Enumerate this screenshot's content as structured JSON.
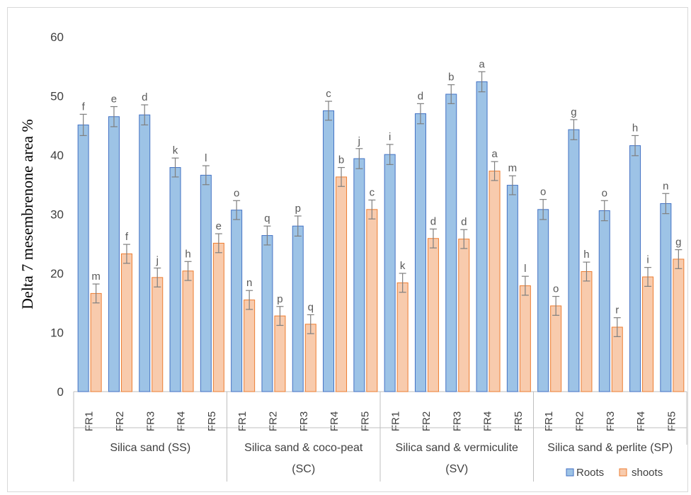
{
  "chart_data": {
    "type": "bar",
    "ylabel": "Delta 7 mesembrenone area %",
    "ylim": [
      0,
      60
    ],
    "yticks": [
      0,
      10,
      20,
      30,
      40,
      50,
      60
    ],
    "groups": [
      {
        "label": "Silica sand (SS)",
        "label2": "",
        "categories": [
          "FR1",
          "FR2",
          "FR3",
          "FR4",
          "FR5"
        ]
      },
      {
        "label": "Silica sand & coco-peat",
        "label2": "(SC)",
        "categories": [
          "FR1",
          "FR2",
          "FR3",
          "FR4",
          "FR5"
        ]
      },
      {
        "label": "Silica sand & vermiculite",
        "label2": "(SV)",
        "categories": [
          "FR1",
          "FR2",
          "FR3",
          "FR4",
          "FR5"
        ]
      },
      {
        "label": "Silica sand & perlite (SP)",
        "label2": "",
        "categories": [
          "FR1",
          "FR2",
          "FR3",
          "FR4",
          "FR5"
        ]
      }
    ],
    "series": [
      {
        "name": "Roots",
        "color": "#9dc3e6",
        "edge": "#4472c4",
        "values": [
          45.1,
          46.5,
          46.8,
          37.9,
          36.6,
          30.7,
          26.4,
          28.0,
          47.5,
          39.4,
          40.1,
          47.0,
          50.3,
          52.4,
          34.9,
          30.8,
          44.3,
          30.6,
          41.6,
          31.8
        ],
        "errors": [
          1.8,
          1.7,
          1.7,
          1.6,
          1.6,
          1.6,
          1.6,
          1.7,
          1.6,
          1.7,
          1.7,
          1.7,
          1.6,
          1.7,
          1.6,
          1.7,
          1.7,
          1.7,
          1.7,
          1.7
        ],
        "letters": [
          "f",
          "e",
          "d",
          "k",
          "l",
          "o",
          "q",
          "p",
          "c",
          "j",
          "i",
          "d",
          "b",
          "a",
          "m",
          "o",
          "g",
          "o",
          "h",
          "n"
        ]
      },
      {
        "name": "shoots",
        "color": "#f8cbad",
        "edge": "#ed7d31",
        "values": [
          16.6,
          23.3,
          19.3,
          20.4,
          25.1,
          15.5,
          12.8,
          11.4,
          36.3,
          30.8,
          18.4,
          25.9,
          25.8,
          37.3,
          17.9,
          14.5,
          20.3,
          10.9,
          19.4,
          22.4
        ],
        "errors": [
          1.6,
          1.6,
          1.6,
          1.6,
          1.6,
          1.6,
          1.6,
          1.6,
          1.6,
          1.6,
          1.6,
          1.6,
          1.6,
          1.6,
          1.6,
          1.6,
          1.6,
          1.6,
          1.6,
          1.6
        ],
        "letters": [
          "m",
          "f",
          "j",
          "h",
          "e",
          "n",
          "p",
          "q",
          "b",
          "c",
          "k",
          "d",
          "d",
          "a",
          "l",
          "o",
          "h",
          "r",
          "i",
          "g"
        ]
      }
    ],
    "legend": {
      "position": "bottom-right"
    }
  }
}
